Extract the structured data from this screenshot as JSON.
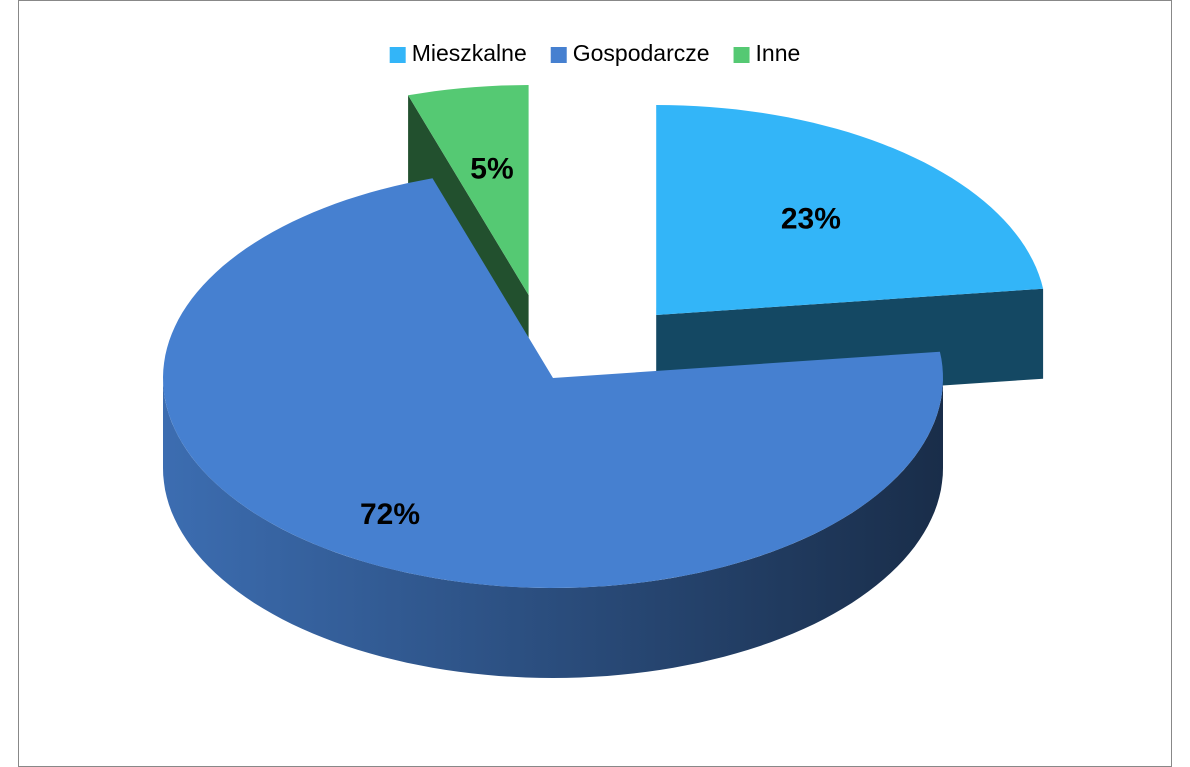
{
  "chart_data": {
    "type": "pie",
    "categories": [
      "Mieszkalne",
      "Gospodarcze",
      "Inne"
    ],
    "values": [
      23,
      72,
      5
    ],
    "value_labels": [
      "23%",
      "72%",
      "5%"
    ],
    "colors": [
      "#33b5f8",
      "#4680d0",
      "#55c973"
    ],
    "legend": "top"
  }
}
